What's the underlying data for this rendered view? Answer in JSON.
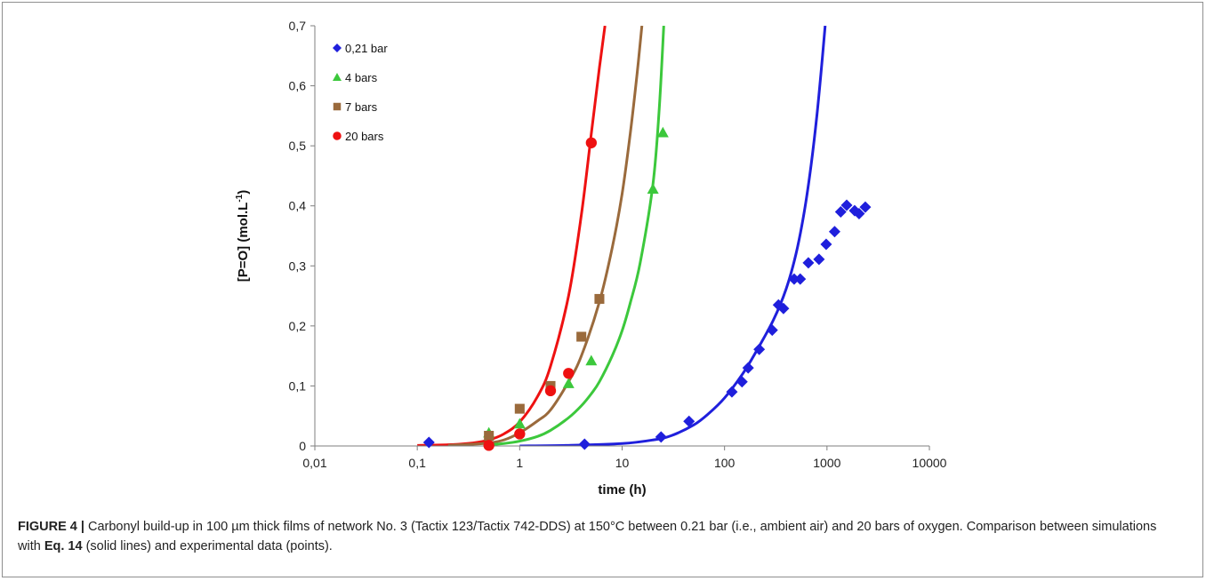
{
  "chart_data": {
    "type": "scatter",
    "title": "",
    "xlabel": "time  (h)",
    "ylabel": "[P=O]  (mol.L",
    "ylabel_sup": "-1",
    "ylabel_end": ")",
    "x_scale": "log",
    "xlim": [
      0.01,
      10000
    ],
    "ylim": [
      0,
      0.7
    ],
    "x_ticks": [
      0.01,
      0.1,
      1,
      10,
      100,
      1000,
      10000
    ],
    "x_tick_labels": [
      "0,01",
      "0,1",
      "1",
      "10",
      "100",
      "1000",
      "10000"
    ],
    "y_ticks": [
      0,
      0.1,
      0.2,
      0.3,
      0.4,
      0.5,
      0.6,
      0.7
    ],
    "y_tick_labels": [
      "0",
      "0,1",
      "0,2",
      "0,3",
      "0,4",
      "0,5",
      "0,6",
      "0,7"
    ],
    "grid": false,
    "legend_position": "top-left",
    "series": [
      {
        "name": "0,21 bar",
        "color": "#1f1fdc",
        "marker": "diamond",
        "x": [
          0.13,
          4.3,
          24,
          45,
          118,
          148,
          170,
          218,
          292,
          336,
          376,
          478,
          548,
          658,
          836,
          982,
          1188,
          1362,
          1558,
          1862,
          2058,
          2368
        ],
        "y": [
          0.006,
          0.003,
          0.015,
          0.041,
          0.09,
          0.107,
          0.13,
          0.161,
          0.193,
          0.235,
          0.229,
          0.278,
          0.278,
          0.305,
          0.311,
          0.336,
          0.357,
          0.39,
          0.401,
          0.392,
          0.387,
          0.398
        ]
      },
      {
        "name": "4 bars",
        "color": "#3cc83c",
        "marker": "triangle",
        "x": [
          0.5,
          1,
          3,
          5,
          20,
          25
        ],
        "y": [
          0.022,
          0.037,
          0.104,
          0.142,
          0.428,
          0.522
        ]
      },
      {
        "name": "7 bars",
        "color": "#9a6a3c",
        "marker": "square",
        "x": [
          0.5,
          1,
          2,
          4,
          6
        ],
        "y": [
          0.017,
          0.062,
          0.1,
          0.182,
          0.245
        ]
      },
      {
        "name": "20 bars",
        "color": "#ee1111",
        "marker": "circle",
        "x": [
          0.5,
          1,
          2,
          3,
          5
        ],
        "y": [
          0.001,
          0.02,
          0.092,
          0.121,
          0.505
        ]
      }
    ],
    "fit_curves": [
      {
        "color": "#ee1111",
        "x": [
          0.1,
          0.2,
          0.35,
          0.5,
          0.7,
          1,
          1.5,
          2,
          3,
          4,
          5,
          6,
          6.8
        ],
        "y": [
          0.001,
          0.002,
          0.005,
          0.01,
          0.02,
          0.04,
          0.083,
          0.133,
          0.25,
          0.385,
          0.52,
          0.63,
          0.7
        ]
      },
      {
        "color": "#9a6a3c",
        "x": [
          0.2,
          0.35,
          0.5,
          0.7,
          1,
          1.5,
          2,
          3,
          4,
          6,
          8,
          10,
          12,
          14,
          15.6
        ],
        "y": [
          0.001,
          0.003,
          0.005,
          0.01,
          0.022,
          0.042,
          0.06,
          0.107,
          0.15,
          0.24,
          0.33,
          0.42,
          0.52,
          0.62,
          0.7
        ]
      },
      {
        "color": "#3cc83c",
        "x": [
          0.5,
          0.7,
          1,
          1.5,
          2,
          3,
          4,
          5,
          6,
          8,
          10,
          12,
          15,
          20,
          23,
          25.5
        ],
        "y": [
          0.002,
          0.004,
          0.008,
          0.016,
          0.026,
          0.047,
          0.067,
          0.087,
          0.107,
          0.15,
          0.192,
          0.238,
          0.305,
          0.436,
          0.56,
          0.7
        ]
      },
      {
        "color": "#1f1fdc",
        "x": [
          1,
          3,
          10,
          20,
          30,
          50,
          70,
          100,
          150,
          200,
          300,
          400,
          500,
          600,
          700,
          800,
          900,
          960
        ],
        "y": [
          0,
          0.001,
          0.004,
          0.01,
          0.017,
          0.035,
          0.054,
          0.08,
          0.12,
          0.155,
          0.21,
          0.262,
          0.321,
          0.39,
          0.468,
          0.553,
          0.645,
          0.7
        ]
      }
    ]
  },
  "caption": {
    "label": "FIGURE 4 |",
    "text_before": " Carbonyl build-up in 100 µm thick films of network No. 3 (Tactix 123/Tactix 742-DDS) at 150°C between 0.21 bar (i.e., ambient air) and 20 bars of oxygen. Comparison between simulations with ",
    "eq_ref": "Eq. 14",
    "text_after": " (solid lines) and experimental data (points)."
  }
}
